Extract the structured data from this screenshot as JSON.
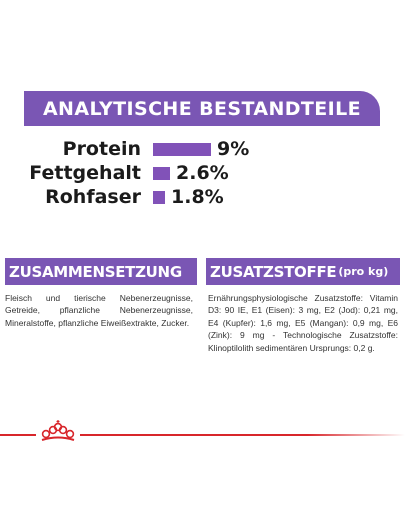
{
  "header": {
    "title": "ANALYTISCHE BESTANDTEILE"
  },
  "nutrients": [
    {
      "label": "Protein",
      "value": "9%",
      "percent": 9
    },
    {
      "label": "Fettgehalt",
      "value": "2.6%",
      "percent": 2.6
    },
    {
      "label": "Rohfaser",
      "value": "1.8%",
      "percent": 1.8
    }
  ],
  "composition": {
    "title": "ZUSAMMENSETZUNG",
    "text": "Fleisch und tierische Nebenerzeugnisse, Getreide, pflanzliche Nebenerzeugnisse, Mineralstoffe, pflanzliche Eiweißextrakte, Zucker."
  },
  "additives": {
    "title": "ZUSATZSTOFFE",
    "unit": "(pro kg)",
    "text": "Ernährungsphysiologische Zusatzstoffe: Vitamin D3: 90 IE, E1 (Eisen): 3 mg, E2 (Jod): 0,21 mg, E4 (Kupfer): 1,6 mg, E5 (Mangan): 0,9 mg, E6 (Zink): 9 mg - Technologische Zusatzstoffe: Klinoptilolith sedimentären Ursprungs: 0,2 g."
  },
  "colors": {
    "accent": "#7a56b4",
    "bar": "#8152b8",
    "brand_red": "#d8262b",
    "text": "#1b1b1b"
  },
  "icons": {
    "brand": "royal-crown-icon"
  }
}
